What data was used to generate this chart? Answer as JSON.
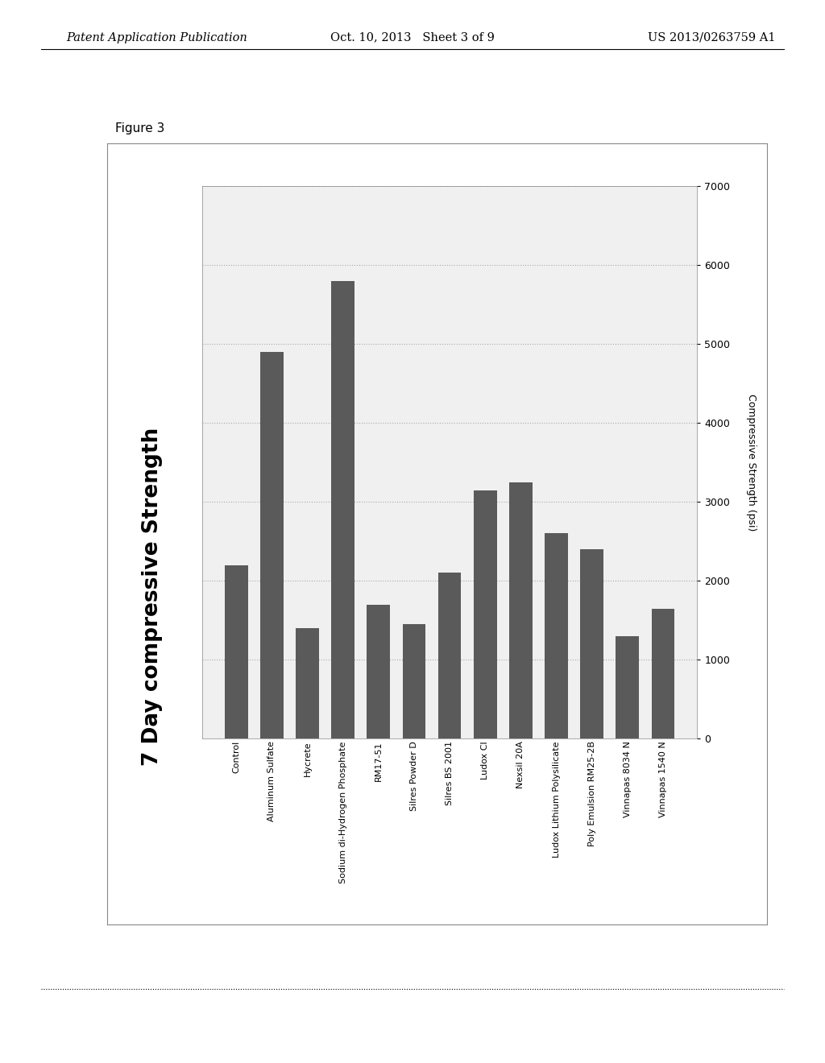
{
  "categories": [
    "Control",
    "Aluminum Sulfate",
    "Hycrete",
    "Sodium di-Hydrogen Phosphate",
    "RM17-51",
    "Silres Powder D",
    "Silres BS 2001",
    "Ludox Cl",
    "Nexsil 20A",
    "Ludox Lithium Polysilicate",
    "Poly Emulsion RM25-2B",
    "Vinnapas 8034 N",
    "Vinnapas 1540 N"
  ],
  "values": [
    2200,
    4900,
    1400,
    5800,
    1700,
    1450,
    2100,
    3150,
    3250,
    2600,
    2400,
    1300,
    1650
  ],
  "bar_color": "#5a5a5a",
  "title": "7 Day compressive Strength",
  "ylabel": "Compressive Strength (psi)",
  "ylim": [
    0,
    7000
  ],
  "yticks": [
    0,
    1000,
    2000,
    3000,
    4000,
    5000,
    6000,
    7000
  ],
  "figure_label": "Figure 3",
  "header_left": "Patent Application Publication",
  "header_center": "Oct. 10, 2013   Sheet 3 of 9",
  "header_right": "US 2013/0263759 A1",
  "bg_color": "#ffffff",
  "chart_bg": "#f0f0f0",
  "grid_color": "#aaaaaa",
  "bar_width": 0.65
}
